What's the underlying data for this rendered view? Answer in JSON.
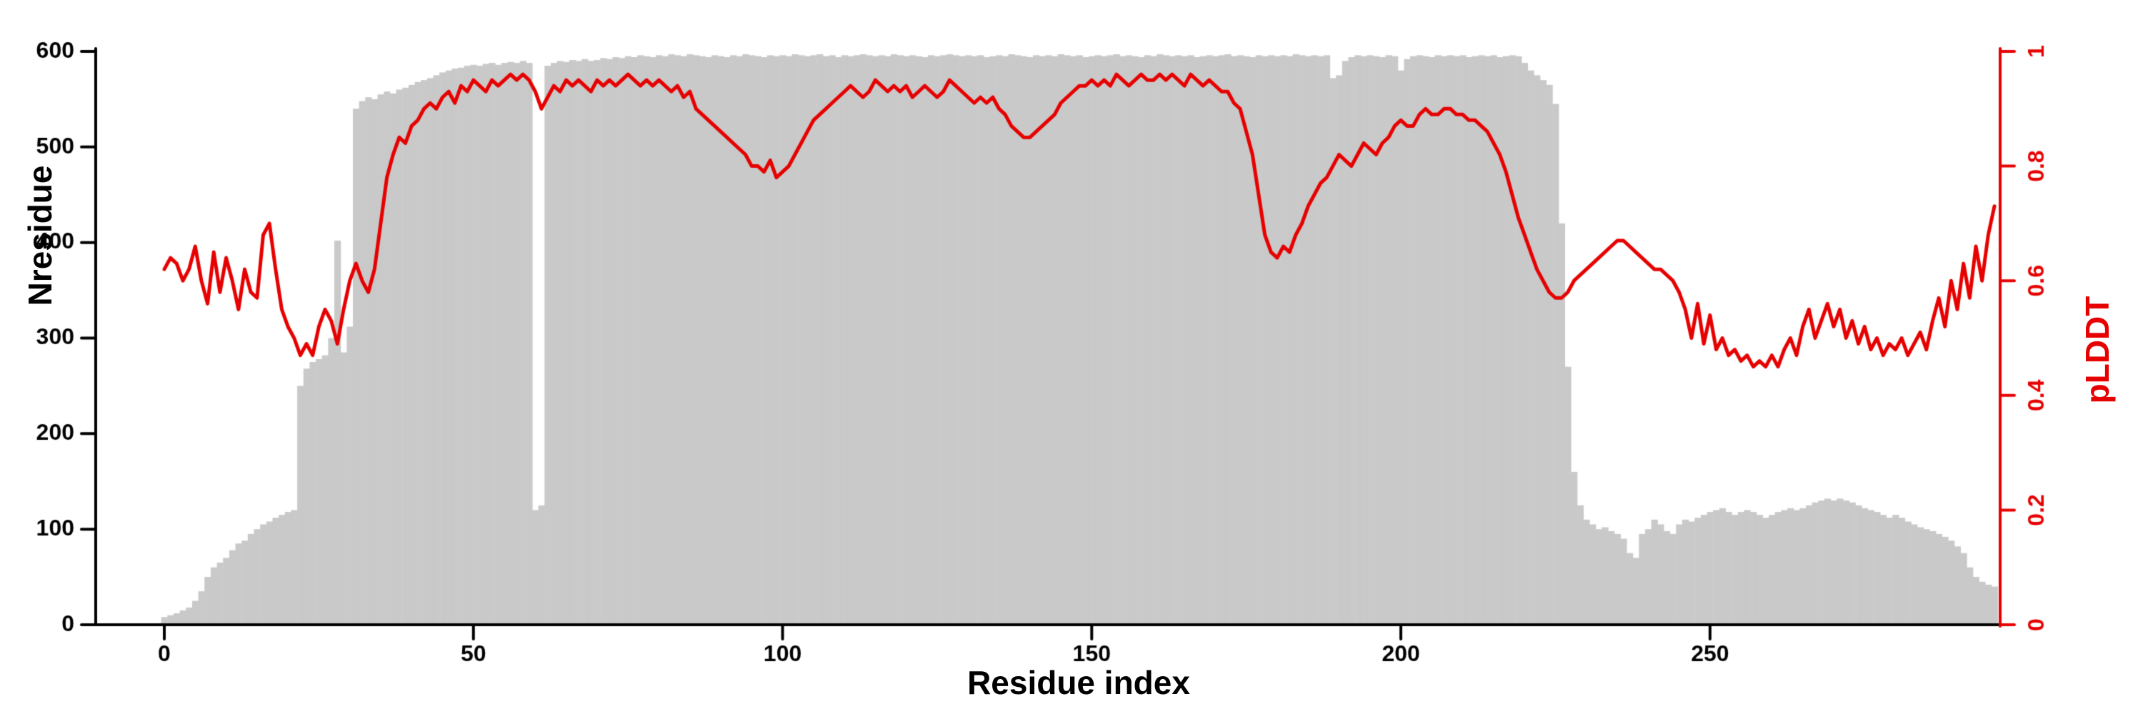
{
  "figure": {
    "background": "#ffffff"
  },
  "chart_data": {
    "type": "bar",
    "subtype": "bar-plus-line-dual-axis",
    "title": "",
    "xlabel": "Residue index",
    "ylabel_left": "Nresidue",
    "ylabel_right": "pLDDT",
    "x_start": 0,
    "x_step": 1,
    "x_max": 296,
    "ylim_left": [
      0,
      600
    ],
    "ylim_right": [
      0,
      1
    ],
    "x_ticks": [
      0,
      50,
      100,
      150,
      200,
      250
    ],
    "left_ticks": [
      0,
      100,
      200,
      300,
      400,
      500,
      600
    ],
    "right_ticks": [
      "0",
      "0.2",
      "0.4",
      "0.6",
      "0.8",
      "1"
    ],
    "grid": false,
    "legend": "none",
    "bar_color": "#c9c9c9",
    "line_color": "#e60000",
    "axis_color": "#000000",
    "series": [
      {
        "name": "Nresidue",
        "type": "bar",
        "axis": "left",
        "values": [
          8,
          10,
          12,
          15,
          18,
          25,
          35,
          50,
          60,
          65,
          70,
          78,
          85,
          88,
          95,
          100,
          105,
          108,
          112,
          115,
          118,
          120,
          250,
          268,
          275,
          278,
          282,
          300,
          402,
          285,
          312,
          540,
          548,
          552,
          550,
          555,
          558,
          556,
          560,
          562,
          565,
          568,
          570,
          572,
          575,
          578,
          580,
          582,
          583,
          585,
          586,
          585,
          587,
          588,
          586,
          588,
          589,
          588,
          590,
          588,
          120,
          125,
          585,
          588,
          590,
          589,
          591,
          590,
          592,
          590,
          591,
          593,
          592,
          594,
          593,
          595,
          594,
          596,
          595,
          594,
          596,
          595,
          597,
          596,
          595,
          597,
          596,
          595,
          594,
          596,
          595,
          594,
          596,
          595,
          597,
          596,
          595,
          594,
          596,
          595,
          596,
          595,
          597,
          596,
          595,
          596,
          597,
          595,
          596,
          594,
          596,
          595,
          596,
          597,
          596,
          595,
          596,
          595,
          597,
          596,
          595,
          596,
          595,
          594,
          596,
          595,
          596,
          597,
          596,
          595,
          596,
          595,
          596,
          594,
          595,
          596,
          595,
          597,
          596,
          595,
          594,
          596,
          595,
          596,
          595,
          597,
          596,
          595,
          596,
          594,
          595,
          596,
          595,
          596,
          597,
          595,
          596,
          595,
          594,
          596,
          595,
          597,
          596,
          595,
          596,
          595,
          596,
          594,
          595,
          596,
          595,
          596,
          597,
          595,
          596,
          595,
          594,
          596,
          595,
          596,
          595,
          596,
          595,
          597,
          596,
          595,
          596,
          595,
          596,
          572,
          575,
          590,
          594,
          596,
          595,
          596,
          595,
          594,
          596,
          595,
          580,
          592,
          595,
          596,
          595,
          594,
          596,
          595,
          596,
          595,
          596,
          594,
          595,
          596,
          595,
          596,
          594,
          595,
          596,
          595,
          588,
          580,
          575,
          570,
          565,
          545,
          420,
          270,
          160,
          125,
          110,
          105,
          100,
          102,
          98,
          95,
          90,
          75,
          70,
          95,
          100,
          110,
          105,
          98,
          95,
          105,
          110,
          108,
          112,
          115,
          118,
          120,
          122,
          118,
          115,
          118,
          120,
          118,
          115,
          112,
          115,
          118,
          120,
          122,
          120,
          122,
          125,
          128,
          130,
          132,
          130,
          132,
          130,
          128,
          125,
          122,
          120,
          118,
          115,
          112,
          115,
          112,
          108,
          105,
          102,
          100,
          98,
          95,
          92,
          88,
          82,
          75,
          60,
          50,
          45,
          42,
          40
        ]
      },
      {
        "name": "pLDDT",
        "type": "line",
        "axis": "right",
        "values": [
          0.62,
          0.64,
          0.63,
          0.6,
          0.62,
          0.66,
          0.6,
          0.56,
          0.65,
          0.58,
          0.64,
          0.6,
          0.55,
          0.62,
          0.58,
          0.57,
          0.68,
          0.7,
          0.62,
          0.55,
          0.52,
          0.5,
          0.47,
          0.49,
          0.47,
          0.52,
          0.55,
          0.53,
          0.49,
          0.55,
          0.6,
          0.63,
          0.6,
          0.58,
          0.62,
          0.7,
          0.78,
          0.82,
          0.85,
          0.84,
          0.87,
          0.88,
          0.9,
          0.91,
          0.9,
          0.92,
          0.93,
          0.91,
          0.94,
          0.93,
          0.95,
          0.94,
          0.93,
          0.95,
          0.94,
          0.95,
          0.96,
          0.95,
          0.96,
          0.95,
          0.93,
          0.9,
          0.92,
          0.94,
          0.93,
          0.95,
          0.94,
          0.95,
          0.94,
          0.93,
          0.95,
          0.94,
          0.95,
          0.94,
          0.95,
          0.96,
          0.95,
          0.94,
          0.95,
          0.94,
          0.95,
          0.94,
          0.93,
          0.94,
          0.92,
          0.93,
          0.9,
          0.89,
          0.88,
          0.87,
          0.86,
          0.85,
          0.84,
          0.83,
          0.82,
          0.8,
          0.8,
          0.79,
          0.81,
          0.78,
          0.79,
          0.8,
          0.82,
          0.84,
          0.86,
          0.88,
          0.89,
          0.9,
          0.91,
          0.92,
          0.93,
          0.94,
          0.93,
          0.92,
          0.93,
          0.95,
          0.94,
          0.93,
          0.94,
          0.93,
          0.94,
          0.92,
          0.93,
          0.94,
          0.93,
          0.92,
          0.93,
          0.95,
          0.94,
          0.93,
          0.92,
          0.91,
          0.92,
          0.91,
          0.92,
          0.9,
          0.89,
          0.87,
          0.86,
          0.85,
          0.85,
          0.86,
          0.87,
          0.88,
          0.89,
          0.91,
          0.92,
          0.93,
          0.94,
          0.94,
          0.95,
          0.94,
          0.95,
          0.94,
          0.96,
          0.95,
          0.94,
          0.95,
          0.96,
          0.95,
          0.95,
          0.96,
          0.95,
          0.96,
          0.95,
          0.94,
          0.96,
          0.95,
          0.94,
          0.95,
          0.94,
          0.93,
          0.93,
          0.91,
          0.9,
          0.86,
          0.82,
          0.75,
          0.68,
          0.65,
          0.64,
          0.66,
          0.65,
          0.68,
          0.7,
          0.73,
          0.75,
          0.77,
          0.78,
          0.8,
          0.82,
          0.81,
          0.8,
          0.82,
          0.84,
          0.83,
          0.82,
          0.84,
          0.85,
          0.87,
          0.88,
          0.87,
          0.87,
          0.89,
          0.9,
          0.89,
          0.89,
          0.9,
          0.9,
          0.89,
          0.89,
          0.88,
          0.88,
          0.87,
          0.86,
          0.84,
          0.82,
          0.79,
          0.75,
          0.71,
          0.68,
          0.65,
          0.62,
          0.6,
          0.58,
          0.57,
          0.57,
          0.58,
          0.6,
          0.61,
          0.62,
          0.63,
          0.64,
          0.65,
          0.66,
          0.67,
          0.67,
          0.66,
          0.65,
          0.64,
          0.63,
          0.62,
          0.62,
          0.61,
          0.6,
          0.58,
          0.55,
          0.5,
          0.56,
          0.49,
          0.54,
          0.48,
          0.5,
          0.47,
          0.48,
          0.46,
          0.47,
          0.45,
          0.46,
          0.45,
          0.47,
          0.45,
          0.48,
          0.5,
          0.47,
          0.52,
          0.55,
          0.5,
          0.53,
          0.56,
          0.52,
          0.55,
          0.5,
          0.53,
          0.49,
          0.52,
          0.48,
          0.5,
          0.47,
          0.49,
          0.48,
          0.5,
          0.47,
          0.49,
          0.51,
          0.48,
          0.53,
          0.57,
          0.52,
          0.6,
          0.55,
          0.63,
          0.57,
          0.66,
          0.6,
          0.68,
          0.73
        ]
      }
    ]
  }
}
